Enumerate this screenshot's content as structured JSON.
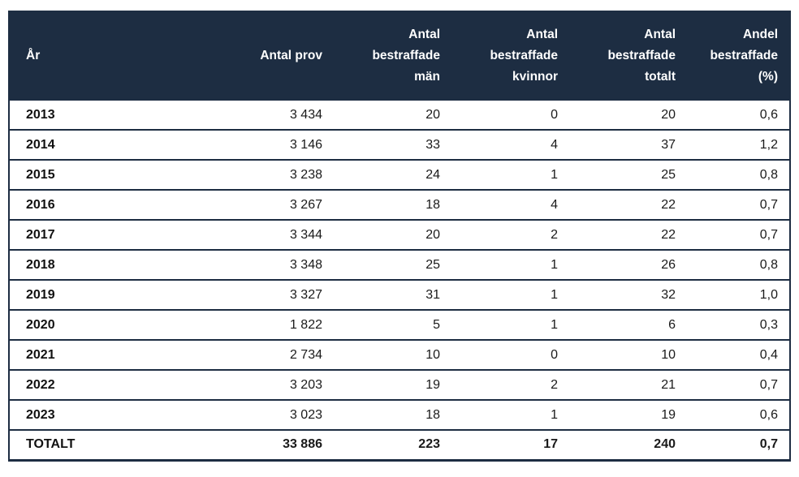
{
  "colors": {
    "header_bg": "#1d2d42",
    "header_text": "#ffffff",
    "border": "#1d2d42",
    "row_bg": "#ffffff",
    "text": "#1a1a1a"
  },
  "chart_data": {
    "type": "table",
    "title": "",
    "columns": [
      {
        "label": "År",
        "lines": [
          "År"
        ]
      },
      {
        "label": "Antal prov",
        "lines": [
          "Antal prov"
        ]
      },
      {
        "label": "Antal bestraffade män",
        "lines": [
          "Antal",
          "bestraffade",
          "män"
        ]
      },
      {
        "label": "Antal bestraffade kvinnor",
        "lines": [
          "Antal",
          "bestraffade",
          "kvinnor"
        ]
      },
      {
        "label": "Antal bestraffade totalt",
        "lines": [
          "Antal",
          "bestraffade",
          "totalt"
        ]
      },
      {
        "label": "Andel bestraffade (%)",
        "lines": [
          "Andel",
          "bestraffade",
          "(%)"
        ]
      }
    ],
    "rows": [
      [
        "2013",
        "3 434",
        "20",
        "0",
        "20",
        "0,6"
      ],
      [
        "2014",
        "3 146",
        "33",
        "4",
        "37",
        "1,2"
      ],
      [
        "2015",
        "3 238",
        "24",
        "1",
        "25",
        "0,8"
      ],
      [
        "2016",
        "3 267",
        "18",
        "4",
        "22",
        "0,7"
      ],
      [
        "2017",
        "3 344",
        "20",
        "2",
        "22",
        "0,7"
      ],
      [
        "2018",
        "3 348",
        "25",
        "1",
        "26",
        "0,8"
      ],
      [
        "2019",
        "3 327",
        "31",
        "1",
        "32",
        "1,0"
      ],
      [
        "2020",
        "1 822",
        "5",
        "1",
        "6",
        "0,3"
      ],
      [
        "2021",
        "2 734",
        "10",
        "0",
        "10",
        "0,4"
      ],
      [
        "2022",
        "3 203",
        "19",
        "2",
        "21",
        "0,7"
      ],
      [
        "2023",
        "3 023",
        "18",
        "1",
        "19",
        "0,6"
      ]
    ],
    "total": [
      "TOTALT",
      "33 886",
      "223",
      "17",
      "240",
      "0,7"
    ]
  }
}
